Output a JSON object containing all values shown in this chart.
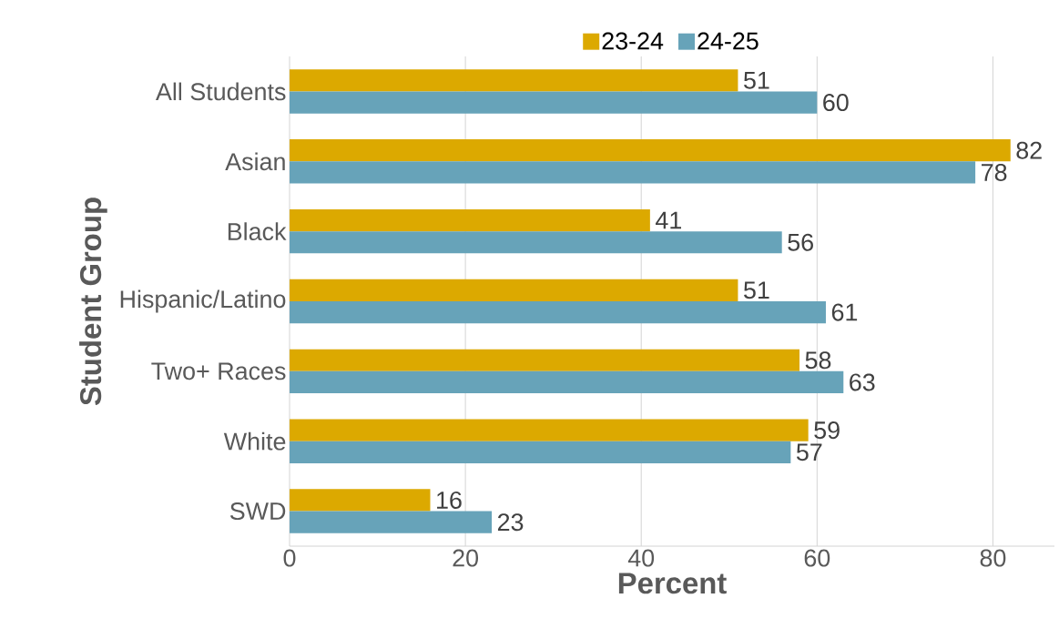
{
  "chart_data": {
    "type": "bar",
    "orientation": "horizontal",
    "xlabel": "Percent",
    "ylabel": "Student Group",
    "categories": [
      "All Students",
      "Asian",
      "Black",
      "Hispanic/Latino",
      "Two+ Races",
      "White",
      "SWD"
    ],
    "series": [
      {
        "name": "23-24",
        "color": "#dca900",
        "values": [
          51,
          82,
          41,
          51,
          58,
          59,
          16
        ]
      },
      {
        "name": "24-25",
        "color": "#67a3b9",
        "values": [
          60,
          78,
          56,
          61,
          63,
          57,
          23
        ]
      }
    ],
    "xlim": [
      0,
      87
    ],
    "xticks": [
      0,
      20,
      40,
      60,
      80
    ],
    "grid": "x",
    "legend": "top",
    "data_labels": true
  }
}
